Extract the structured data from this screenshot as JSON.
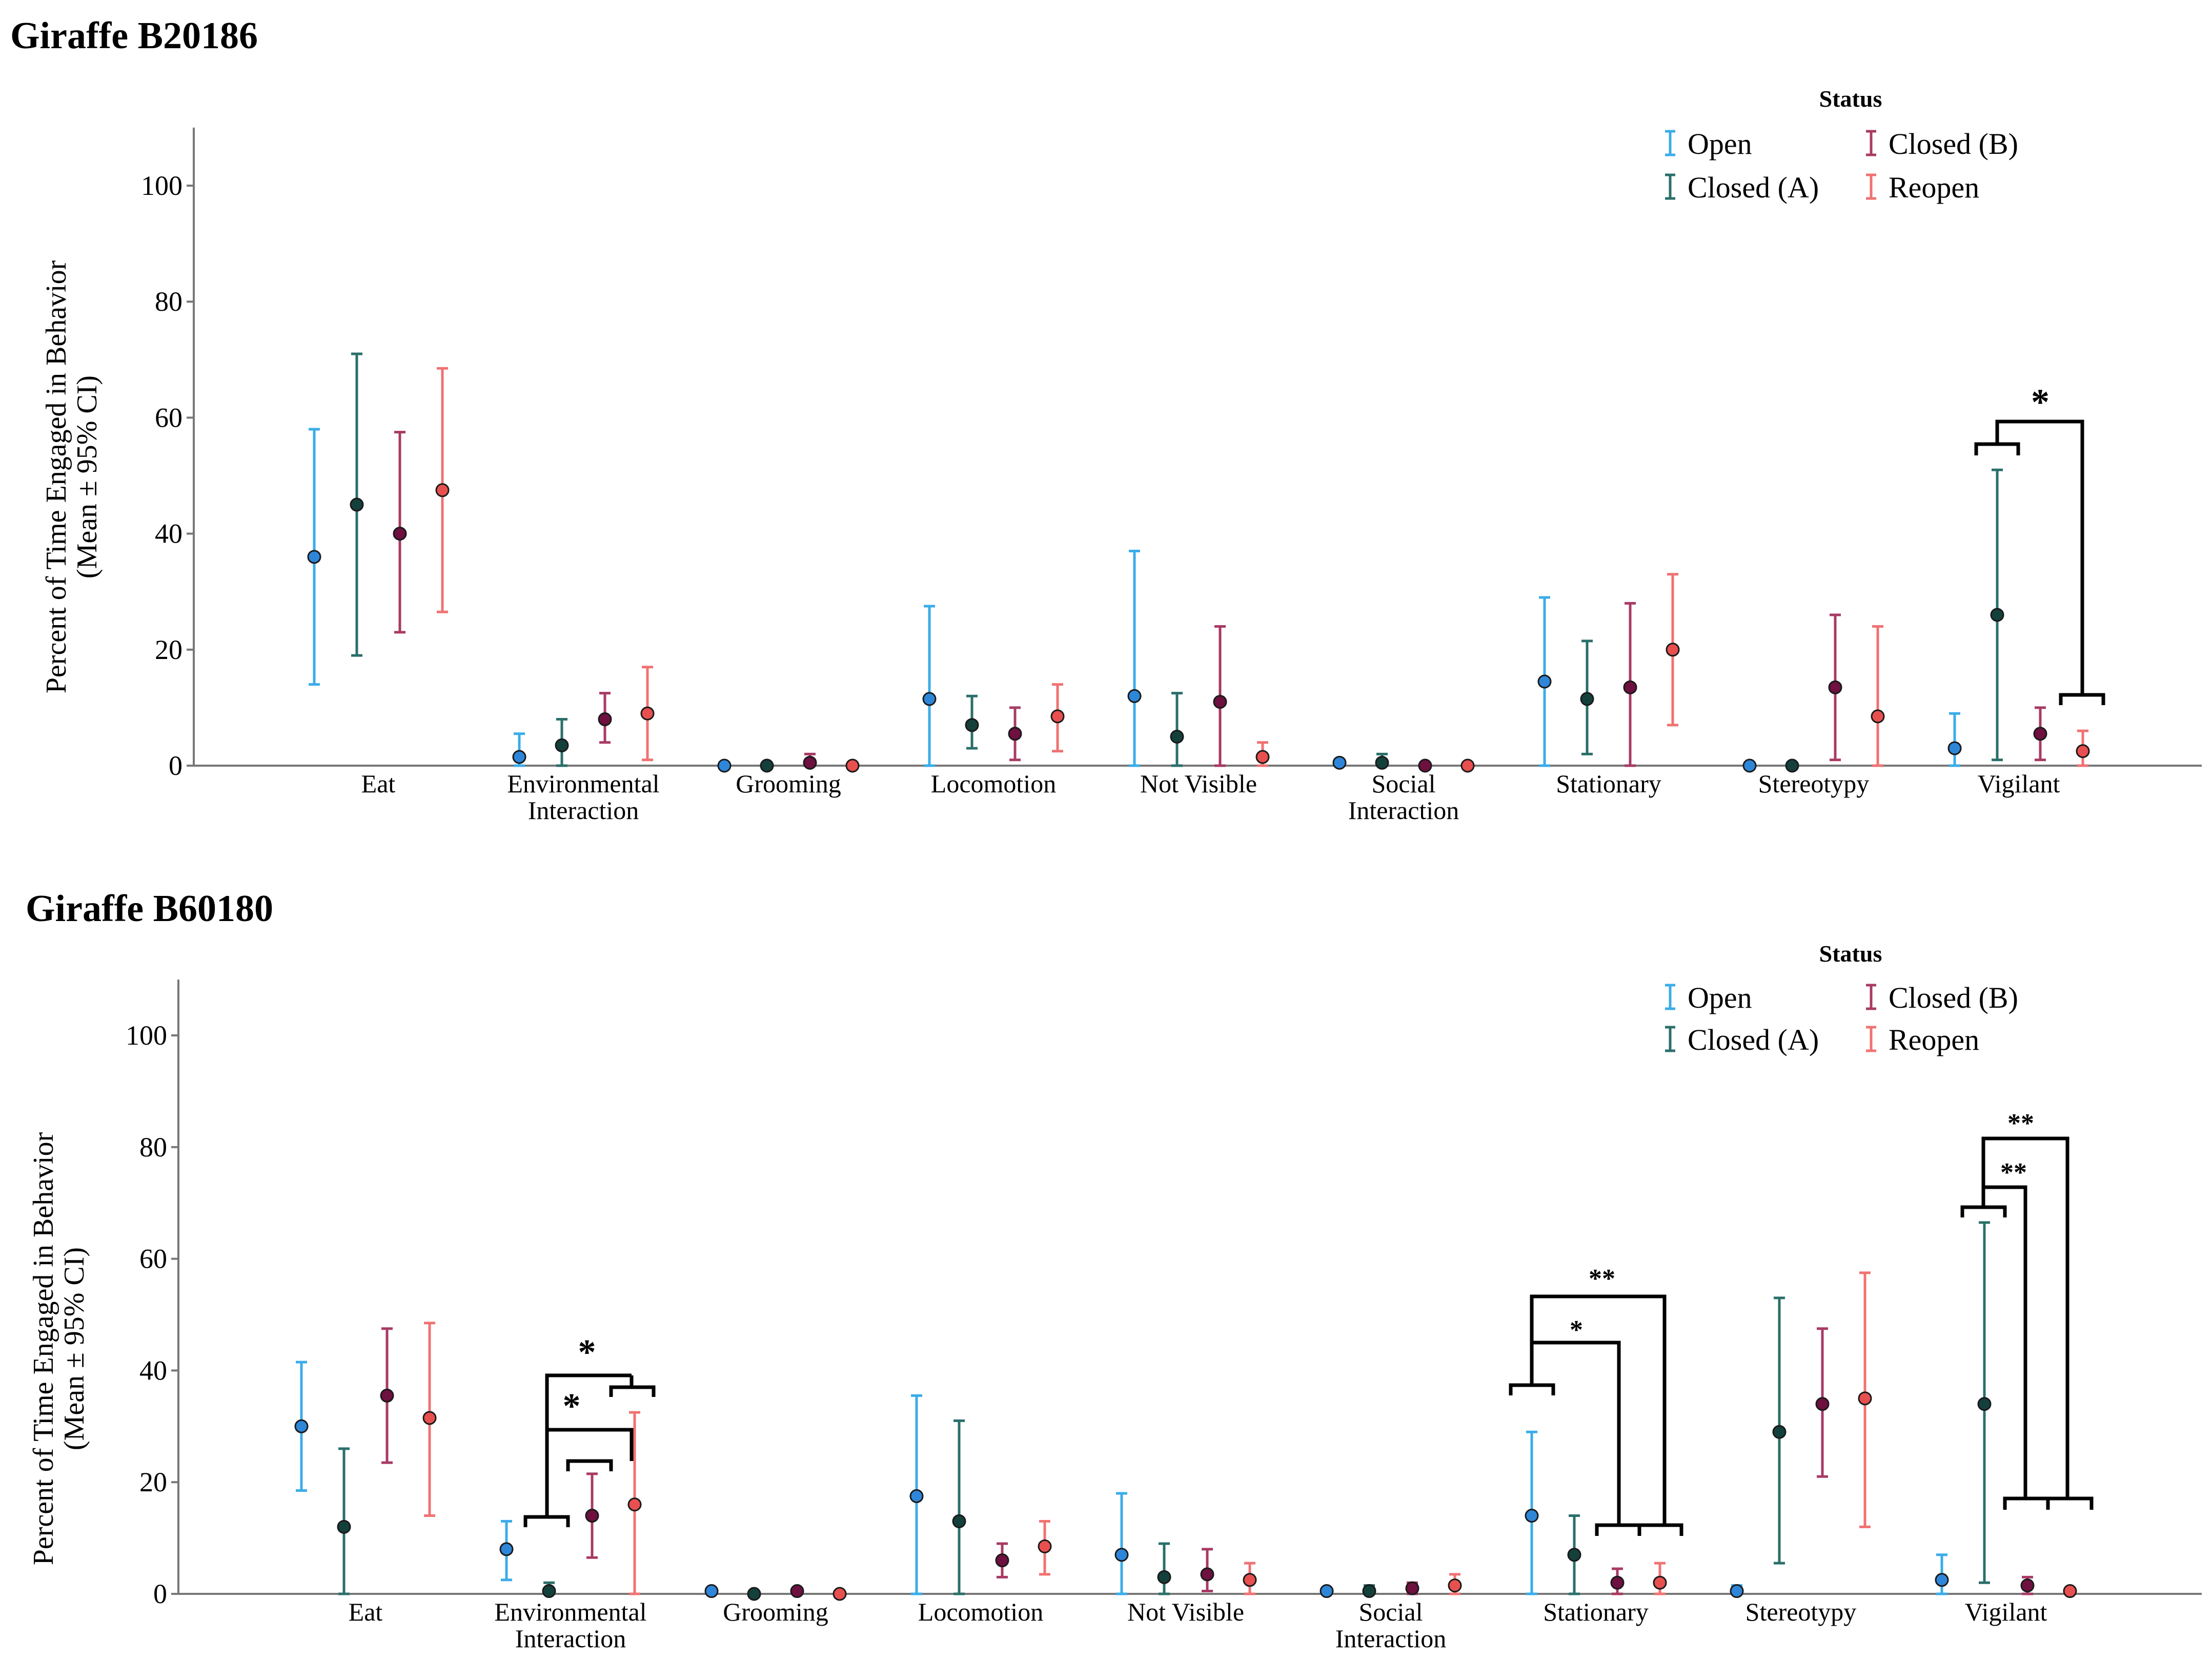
{
  "legend": {
    "title": "Status",
    "entries": [
      "Open",
      "Closed (A)",
      "Closed (B)",
      "Reopen"
    ]
  },
  "colors": {
    "Open": "#3AACE9",
    "Closed (A)": "#2A6F6A",
    "Closed (B)": "#A83A64",
    "Reopen": "#F07272",
    "Open_dot": "#2E86D9",
    "Closed (A)_dot": "#14403C",
    "Closed (B)_dot": "#6E1040",
    "Reopen_dot": "#E8504F",
    "axis": "#777777"
  },
  "chart_data": [
    {
      "type": "scatter",
      "title": "Giraffe B20186",
      "ylabel": [
        "Percent of Time Engaged in Behavior",
        "(Mean ± 95% CI)"
      ],
      "ylim": [
        0,
        110
      ],
      "yticks": [
        0,
        20,
        40,
        60,
        80,
        100
      ],
      "categories": [
        "Eat",
        "Environmental\nInteraction",
        "Grooming",
        "Locomotion",
        "Not Visible",
        "Social\nInteraction",
        "Stationary",
        "Stereotypy",
        "Vigilant"
      ],
      "series": [
        {
          "name": "Open",
          "mean": [
            36,
            1.5,
            0,
            11.5,
            12,
            0.5,
            14.5,
            0,
            3
          ],
          "lower": [
            14,
            0,
            0,
            0,
            0,
            0,
            0,
            0,
            0
          ],
          "upper": [
            58,
            5.5,
            0,
            27.5,
            37,
            1,
            29,
            0,
            9
          ]
        },
        {
          "name": "Closed (A)",
          "mean": [
            45,
            3.5,
            0,
            7,
            5,
            0.5,
            11.5,
            0,
            26
          ],
          "lower": [
            19,
            0,
            0,
            3,
            0,
            0,
            2,
            0,
            1
          ],
          "upper": [
            71,
            8,
            0,
            12,
            12.5,
            2,
            21.5,
            0,
            51
          ]
        },
        {
          "name": "Closed (B)",
          "mean": [
            40,
            8,
            0.5,
            5.5,
            11,
            0,
            13.5,
            13.5,
            5.5
          ],
          "lower": [
            23,
            4,
            0,
            1,
            0,
            0,
            0,
            1,
            1
          ],
          "upper": [
            57.5,
            12.5,
            2,
            10,
            24,
            0,
            28,
            26,
            10
          ]
        },
        {
          "name": "Reopen",
          "mean": [
            47.5,
            9,
            0,
            8.5,
            1.5,
            0,
            20,
            8.5,
            2.5
          ],
          "lower": [
            26.5,
            1,
            0,
            2.5,
            0,
            0,
            7,
            0,
            0
          ],
          "upper": [
            68.5,
            17,
            0,
            14,
            4,
            0,
            33,
            24,
            6
          ]
        }
      ],
      "significance": [
        {
          "category": "Vigilant",
          "groupA": [
            "Open",
            "Closed (A)"
          ],
          "groupB": [
            "Reopen"
          ],
          "label": "*",
          "y_drop": 56,
          "y_top": 59.5,
          "y_drop2": 12
        }
      ]
    },
    {
      "type": "scatter",
      "title": "Giraffe B60180",
      "ylabel": [
        "Percent of Time Engaged in Behavior",
        "(Mean ± 95% CI)"
      ],
      "ylim": [
        0,
        110
      ],
      "yticks": [
        0,
        20,
        40,
        60,
        80,
        100
      ],
      "categories": [
        "Eat",
        "Environmental\nInteraction",
        "Grooming",
        "Locomotion",
        "Not Visible",
        "Social\nInteraction",
        "Stationary",
        "Stereotypy",
        "Vigilant"
      ],
      "series": [
        {
          "name": "Open",
          "mean": [
            30,
            8,
            0.5,
            17.5,
            7,
            0.5,
            14,
            0.5,
            2.5
          ],
          "lower": [
            18.5,
            2.5,
            0,
            0,
            0,
            0,
            0,
            0,
            0
          ],
          "upper": [
            41.5,
            13,
            0.5,
            35.5,
            18,
            1,
            29,
            1.5,
            7
          ]
        },
        {
          "name": "Closed (A)",
          "mean": [
            12,
            0.5,
            0,
            13,
            3,
            0.5,
            7,
            29,
            34
          ],
          "lower": [
            0,
            0,
            0,
            0,
            0,
            0,
            0,
            5.5,
            2
          ],
          "upper": [
            26,
            2,
            0,
            31,
            9,
            1.5,
            14,
            53,
            66.5
          ]
        },
        {
          "name": "Closed (B)",
          "mean": [
            35.5,
            14,
            0.5,
            6,
            3.5,
            1,
            2,
            34,
            1.5
          ],
          "lower": [
            23.5,
            6.5,
            0,
            3,
            0.5,
            0,
            0,
            21,
            0
          ],
          "upper": [
            47.5,
            21.5,
            0.5,
            9,
            8,
            2,
            4.5,
            47.5,
            3
          ]
        },
        {
          "name": "Reopen",
          "mean": [
            31.5,
            16,
            0,
            8.5,
            2.5,
            1.5,
            2,
            35,
            0.5
          ],
          "lower": [
            14,
            0,
            0,
            3.5,
            0,
            0,
            0,
            12,
            0
          ],
          "upper": [
            48.5,
            32.5,
            0,
            13,
            5.5,
            3.5,
            5.5,
            57.5,
            1
          ]
        }
      ],
      "significance": [
        {
          "category": "Environmental\nInteraction",
          "label": "*"
        },
        {
          "category": "Environmental\nInteraction",
          "label": "*"
        },
        {
          "category": "Stationary",
          "label": "*"
        },
        {
          "category": "Stationary",
          "label": "**"
        },
        {
          "category": "Vigilant",
          "label": "**"
        },
        {
          "category": "Vigilant",
          "label": "**"
        }
      ]
    }
  ]
}
